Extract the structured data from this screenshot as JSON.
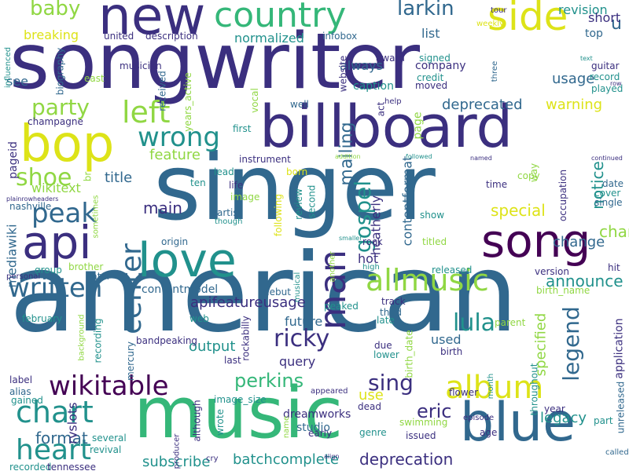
{
  "palette": {
    "darkPurple": "#440154",
    "indigo": "#3b2f7f",
    "blue": "#31688e",
    "teal": "#21918c",
    "green": "#35b779",
    "lime": "#90d743",
    "yellow": "#dde318"
  },
  "words": [
    {
      "text": "american",
      "color": "blue"
    },
    {
      "text": "singer",
      "color": "blue"
    },
    {
      "text": "songwriter",
      "color": "indigo"
    },
    {
      "text": "billboard",
      "color": "indigo"
    },
    {
      "text": "music",
      "color": "green"
    },
    {
      "text": "new",
      "color": "indigo"
    },
    {
      "text": "country",
      "color": "green"
    },
    {
      "text": "bop",
      "color": "yellow"
    },
    {
      "text": "love",
      "color": "teal"
    },
    {
      "text": "song",
      "color": "darkPurple"
    },
    {
      "text": "blue",
      "color": "blue"
    },
    {
      "text": "api",
      "color": "indigo"
    },
    {
      "text": "side",
      "color": "yellow"
    },
    {
      "text": "allmusic",
      "color": "lime"
    },
    {
      "text": "album",
      "color": "yellow"
    },
    {
      "text": "man",
      "color": "indigo"
    },
    {
      "text": "chart",
      "color": "teal"
    },
    {
      "text": "heart",
      "color": "teal"
    },
    {
      "text": "wikitable",
      "color": "darkPurple"
    },
    {
      "text": "left",
      "color": "lime"
    },
    {
      "text": "wrong",
      "color": "teal"
    },
    {
      "text": "peak",
      "color": "blue"
    },
    {
      "text": "written",
      "color": "blue"
    },
    {
      "text": "center",
      "color": "blue"
    },
    {
      "text": "ricky",
      "color": "indigo"
    },
    {
      "text": "lula",
      "color": "teal"
    },
    {
      "text": "sing",
      "color": "indigo"
    },
    {
      "text": "perkins",
      "color": "green"
    },
    {
      "text": "legend",
      "color": "blue"
    },
    {
      "text": "gospel",
      "color": "teal"
    },
    {
      "text": "shoe",
      "color": "lime"
    },
    {
      "text": "party",
      "color": "lime"
    },
    {
      "text": "baby",
      "color": "lime"
    },
    {
      "text": "larkin",
      "color": "blue"
    },
    {
      "text": "u",
      "color": "blue"
    },
    {
      "text": "mailing",
      "color": "blue"
    },
    {
      "text": "eric",
      "color": "indigo"
    },
    {
      "text": "notice",
      "color": "teal"
    },
    {
      "text": "specified",
      "color": "lime"
    },
    {
      "text": "chante",
      "color": "lime"
    },
    {
      "text": "announce",
      "color": "teal"
    },
    {
      "text": "format",
      "color": "blue"
    },
    {
      "text": "main",
      "color": "indigo"
    },
    {
      "text": "special",
      "color": "yellow"
    },
    {
      "text": "subscribe",
      "color": "teal"
    },
    {
      "text": "batchcomplete",
      "color": "teal"
    },
    {
      "text": "deprecation",
      "color": "indigo"
    },
    {
      "text": "contentformat",
      "color": "blue"
    },
    {
      "text": "legacy",
      "color": "teal"
    },
    {
      "text": "future",
      "color": "blue"
    },
    {
      "text": "output",
      "color": "teal"
    },
    {
      "text": "query",
      "color": "indigo"
    },
    {
      "text": "change",
      "color": "blue"
    },
    {
      "text": "title",
      "color": "blue"
    },
    {
      "text": "feature",
      "color": "lime"
    },
    {
      "text": "deprecated",
      "color": "blue"
    },
    {
      "text": "warning",
      "color": "yellow"
    },
    {
      "text": "usage",
      "color": "blue"
    },
    {
      "text": "list",
      "color": "blue"
    },
    {
      "text": "breaking",
      "color": "yellow"
    },
    {
      "text": "normalized",
      "color": "teal"
    },
    {
      "text": "always",
      "color": "blue"
    },
    {
      "text": "heatherly",
      "color": "indigo"
    },
    {
      "text": "page",
      "color": "lime"
    },
    {
      "text": "apifeatureusage",
      "color": "indigo"
    },
    {
      "text": "mediawiki",
      "color": "blue"
    },
    {
      "text": "contentmodel",
      "color": "blue"
    },
    {
      "text": "use",
      "color": "yellow"
    },
    {
      "text": "used",
      "color": "blue"
    },
    {
      "text": "wikitext",
      "color": "lime"
    },
    {
      "text": "revision",
      "color": "teal"
    },
    {
      "text": "short",
      "color": "indigo"
    },
    {
      "text": "top",
      "color": "blue"
    },
    {
      "text": "hot",
      "color": "indigo"
    },
    {
      "text": "see",
      "color": "blue"
    },
    {
      "text": "pageid",
      "color": "indigo"
    },
    {
      "text": "rvslots",
      "color": "indigo"
    },
    {
      "text": "dreamworks",
      "color": "indigo"
    },
    {
      "text": "studio",
      "color": "blue"
    },
    {
      "text": "guitar",
      "color": "indigo"
    },
    {
      "text": "record",
      "color": "teal"
    },
    {
      "text": "played",
      "color": "teal"
    },
    {
      "text": "application",
      "color": "indigo"
    },
    {
      "text": "caption",
      "color": "teal"
    },
    {
      "text": "company",
      "color": "indigo"
    },
    {
      "text": "credit",
      "color": "teal"
    },
    {
      "text": "moved",
      "color": "indigo"
    },
    {
      "text": "signed",
      "color": "teal"
    },
    {
      "text": "award",
      "color": "indigo"
    },
    {
      "text": "infobox",
      "color": "blue"
    },
    {
      "text": "description",
      "color": "indigo"
    },
    {
      "text": "united",
      "color": "indigo"
    },
    {
      "text": "musician",
      "color": "indigo"
    },
    {
      "text": "received",
      "color": "blue"
    },
    {
      "text": "biography",
      "color": "blue"
    },
    {
      "text": "influenced",
      "color": "teal"
    },
    {
      "text": "east",
      "color": "lime"
    },
    {
      "text": "champagne",
      "color": "indigo"
    },
    {
      "text": "vocal",
      "color": "lime"
    },
    {
      "text": "years_active",
      "color": "lime"
    },
    {
      "text": "website",
      "color": "indigo"
    },
    {
      "text": "well",
      "color": "blue"
    },
    {
      "text": "act",
      "color": "indigo"
    },
    {
      "text": "help",
      "color": "indigo"
    },
    {
      "text": "three",
      "color": "blue"
    },
    {
      "text": "first",
      "color": "teal"
    },
    {
      "text": "instrument",
      "color": "indigo"
    },
    {
      "text": "lead",
      "color": "teal"
    },
    {
      "text": "ten",
      "color": "teal"
    },
    {
      "text": "life",
      "color": "indigo"
    },
    {
      "text": "image",
      "color": "lime"
    },
    {
      "text": "born",
      "color": "yellow"
    },
    {
      "text": "review",
      "color": "teal"
    },
    {
      "text": "second",
      "color": "teal"
    },
    {
      "text": "artist",
      "color": "blue"
    },
    {
      "text": "though",
      "color": "teal"
    },
    {
      "text": "following",
      "color": "yellow"
    },
    {
      "text": "sometimes",
      "color": "lime"
    },
    {
      "text": "nashville",
      "color": "blue"
    },
    {
      "text": "plainrowheaders",
      "color": "indigo"
    },
    {
      "text": "br",
      "color": "lime"
    },
    {
      "text": "origin",
      "color": "blue"
    },
    {
      "text": "group",
      "color": "teal"
    },
    {
      "text": "brother",
      "color": "lime"
    },
    {
      "text": "later",
      "color": "blue"
    },
    {
      "text": "personal",
      "color": "indigo"
    },
    {
      "text": "debut",
      "color": "blue"
    },
    {
      "text": "musical",
      "color": "teal"
    },
    {
      "text": "peaked",
      "color": "teal"
    },
    {
      "text": "released",
      "color": "teal"
    },
    {
      "text": "track",
      "color": "indigo"
    },
    {
      "text": "third",
      "color": "blue"
    },
    {
      "text": "late",
      "color": "teal"
    },
    {
      "text": "birth_date",
      "color": "lime"
    },
    {
      "text": "due",
      "color": "indigo"
    },
    {
      "text": "lower",
      "color": "teal"
    },
    {
      "text": "birth",
      "color": "indigo"
    },
    {
      "text": "february",
      "color": "teal"
    },
    {
      "text": "background",
      "color": "lime"
    },
    {
      "text": "recording",
      "color": "teal"
    },
    {
      "text": "bandpeaking",
      "color": "indigo"
    },
    {
      "text": "mercury",
      "color": "blue"
    },
    {
      "text": "rockabilly",
      "color": "indigo"
    },
    {
      "text": "web",
      "color": "teal"
    },
    {
      "text": "last",
      "color": "indigo"
    },
    {
      "text": "label",
      "color": "indigo"
    },
    {
      "text": "alias",
      "color": "blue"
    },
    {
      "text": "gained",
      "color": "teal"
    },
    {
      "text": "several",
      "color": "teal"
    },
    {
      "text": "revival",
      "color": "teal"
    },
    {
      "text": "recorded",
      "color": "teal"
    },
    {
      "text": "tennessee",
      "color": "indigo"
    },
    {
      "text": "producer",
      "color": "indigo"
    },
    {
      "text": "although",
      "color": "indigo"
    },
    {
      "text": "wrote",
      "color": "teal"
    },
    {
      "text": "image_size",
      "color": "teal"
    },
    {
      "text": "name",
      "color": "lime"
    },
    {
      "text": "cry",
      "color": "indigo"
    },
    {
      "text": "early",
      "color": "indigo"
    },
    {
      "text": "dead",
      "color": "indigo"
    },
    {
      "text": "genre",
      "color": "teal"
    },
    {
      "text": "issued",
      "color": "indigo"
    },
    {
      "text": "swimming",
      "color": "lime"
    },
    {
      "text": "appeared",
      "color": "indigo"
    },
    {
      "text": "align",
      "color": "indigo"
    },
    {
      "text": "episode",
      "color": "indigo"
    },
    {
      "text": "age",
      "color": "indigo"
    },
    {
      "text": "flower",
      "color": "indigo"
    },
    {
      "text": "month",
      "color": "teal"
    },
    {
      "text": "throughout",
      "color": "teal"
    },
    {
      "text": "part",
      "color": "teal"
    },
    {
      "text": "year",
      "color": "indigo"
    },
    {
      "text": "called",
      "color": "blue"
    },
    {
      "text": "unreleased",
      "color": "blue"
    },
    {
      "text": "birth_name",
      "color": "lime"
    },
    {
      "text": "hit",
      "color": "indigo"
    },
    {
      "text": "parent",
      "color": "lime"
    },
    {
      "text": "version",
      "color": "indigo"
    },
    {
      "text": "single",
      "color": "blue"
    },
    {
      "text": "cover",
      "color": "teal"
    },
    {
      "text": "date",
      "color": "blue"
    },
    {
      "text": "time",
      "color": "indigo"
    },
    {
      "text": "copy",
      "color": "lime"
    },
    {
      "text": "way",
      "color": "lime"
    },
    {
      "text": "occupation",
      "color": "indigo"
    },
    {
      "text": "continued",
      "color": "indigo"
    },
    {
      "text": "named",
      "color": "indigo"
    },
    {
      "text": "followed",
      "color": "teal"
    },
    {
      "text": "addition",
      "color": "lime"
    },
    {
      "text": "show",
      "color": "teal"
    },
    {
      "text": "titled",
      "color": "lime"
    },
    {
      "text": "smaller",
      "color": "teal"
    },
    {
      "text": "another",
      "color": "lime"
    },
    {
      "text": "high",
      "color": "teal"
    },
    {
      "text": "rock",
      "color": "indigo"
    },
    {
      "text": "tour",
      "color": "indigo"
    },
    {
      "text": "weekly",
      "color": "yellow"
    },
    {
      "text": "text",
      "color": "teal"
    },
    {
      "text": "row",
      "color": "indigo"
    }
  ]
}
